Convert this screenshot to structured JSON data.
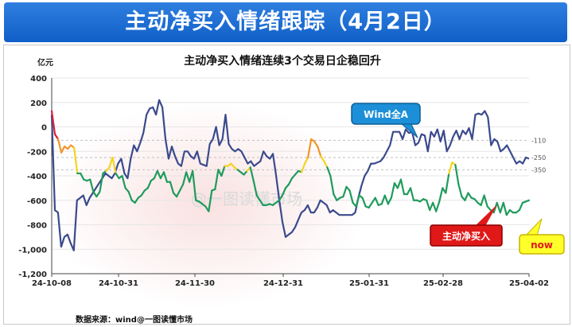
{
  "header": {
    "title": "主动净买入情绪跟踪（4月2日）"
  },
  "chart_data": {
    "type": "line",
    "title": "主动净买入情绪连续3个交易日企稳回升",
    "ylabel": "亿元",
    "ylim": [
      -1200,
      400
    ],
    "yticks": [
      "400",
      "200",
      "0",
      "-200",
      "-400",
      "-600",
      "-800",
      "-1,000",
      "-1,200"
    ],
    "xticks": [
      "24-10-08",
      "24-10-31",
      "24-11-30",
      "24-12-31",
      "25-01-31",
      "25-02-28",
      "25-04-02"
    ],
    "ref_labels": [
      "-110",
      "-250",
      "-350"
    ],
    "ref_values": [
      -110,
      -250,
      -350
    ],
    "series": [
      {
        "name": "Wind全A",
        "color": "#3a4a8c",
        "values": [
          100,
          -680,
          -700,
          -980,
          -900,
          -880,
          -950,
          -1010,
          -600,
          -580,
          -560,
          -640,
          -580,
          -540,
          -500,
          -460,
          -420,
          -380,
          -400,
          -420,
          -380,
          -300,
          -260,
          -380,
          -420,
          -260,
          -150,
          -200,
          -130,
          -50,
          100,
          150,
          160,
          100,
          220,
          160,
          -100,
          -260,
          -160,
          -240,
          -300,
          -320,
          -200,
          -200,
          -240,
          -260,
          -200,
          -300,
          -310,
          -320,
          -140,
          -100,
          0,
          -150,
          -100,
          100,
          -140,
          -180,
          -200,
          -180,
          -200,
          -250,
          -300,
          -280,
          -320,
          -300,
          -280,
          -200,
          -240,
          -260,
          -220,
          -400,
          -600,
          -780,
          -900,
          -880,
          -860,
          -820,
          -760,
          -700,
          -680,
          -640,
          -700,
          -700,
          -660,
          -600,
          -620,
          -640,
          -700,
          -680,
          -700,
          -720,
          -720,
          -720,
          -720,
          -720,
          -700,
          -580,
          -480,
          -400,
          -360,
          -300,
          -300,
          -290,
          -280,
          -250,
          -200,
          -150,
          -40,
          -40,
          -40,
          -100,
          -20,
          -50,
          -40,
          -150,
          -130,
          -60,
          -70,
          -200,
          -40,
          -80,
          -20,
          -120,
          -30,
          -200,
          -150,
          -80,
          -30,
          -100,
          -30,
          -60,
          -10,
          -100,
          100,
          110,
          100,
          130,
          80,
          -150,
          -100,
          -120,
          -200,
          -180,
          -150,
          -200,
          -250,
          -300,
          -280,
          -300,
          -250,
          -260
        ]
      },
      {
        "name": "主动净买入",
        "color": "#1f9b5c",
        "values": [
          130,
          -60,
          -100,
          -210,
          -160,
          -180,
          -150,
          -170,
          -380,
          -380,
          -430,
          -440,
          -430,
          -530,
          -570,
          -530,
          -380,
          -360,
          -330,
          -250,
          -380,
          -420,
          -400,
          -500,
          -530,
          -600,
          -620,
          -580,
          -560,
          -520,
          -500,
          -440,
          -420,
          -360,
          -420,
          -370,
          -450,
          -450,
          -540,
          -570,
          -520,
          -470,
          -370,
          -450,
          -360,
          -600,
          -610,
          -630,
          -650,
          -690,
          -520,
          -510,
          -350,
          -400,
          -320,
          -320,
          -300,
          -330,
          -350,
          -370,
          -390,
          -360,
          -330,
          -440,
          -560,
          -600,
          -640,
          -640,
          -630,
          -640,
          -620,
          -600,
          -560,
          -500,
          -470,
          -420,
          -390,
          -360,
          -370,
          -300,
          -250,
          -100,
          -120,
          -160,
          -240,
          -280,
          -330,
          -400,
          -550,
          -600,
          -580,
          -570,
          -490,
          -520,
          -620,
          -650,
          -560,
          -580,
          -650,
          -660,
          -620,
          -580,
          -640,
          -630,
          -560,
          -630,
          -580,
          -460,
          -500,
          -430,
          -550,
          -550,
          -500,
          -600,
          -600,
          -610,
          -590,
          -600,
          -680,
          -620,
          -690,
          -610,
          -500,
          -540,
          -380,
          -290,
          -310,
          -470,
          -570,
          -600,
          -540,
          -580,
          -590,
          -620,
          -640,
          -560,
          -650,
          -680,
          -700,
          -620,
          -700,
          -620,
          -720,
          -680,
          -700,
          -700,
          -680,
          -620,
          -610,
          -600
        ]
      }
    ]
  },
  "annotations": {
    "wind_label": "Wind全A",
    "net_buy_label": "主动净买入",
    "now_label": "now",
    "watermark": "@一图读懂市场",
    "source": "数据来源：wind@一图读懂市场"
  }
}
